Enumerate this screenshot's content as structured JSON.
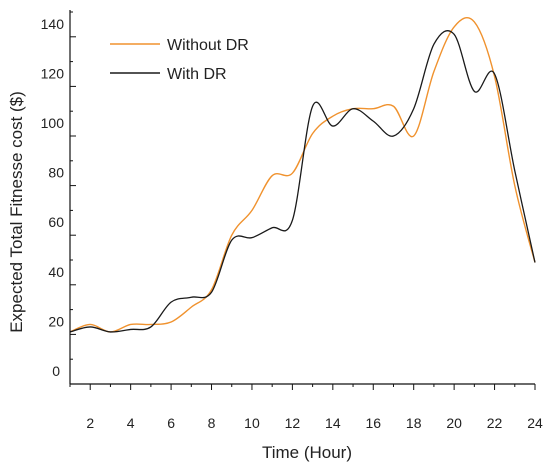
{
  "chart_data": {
    "type": "line",
    "title": "",
    "xlabel": "Time (Hour)",
    "ylabel": "Expected Total Fitnesse cost ($)",
    "xlim": [
      1,
      24
    ],
    "ylim": [
      0,
      150
    ],
    "x_ticks": [
      2,
      4,
      6,
      8,
      10,
      12,
      14,
      16,
      18,
      20,
      22,
      24
    ],
    "y_ticks": [
      0,
      20,
      40,
      60,
      80,
      100,
      120,
      140
    ],
    "y_tick_labels": [
      "0",
      "20",
      "40",
      "60",
      "80",
      "100",
      "120",
      "140"
    ],
    "grid": false,
    "legend_position": "top-left",
    "x": [
      1,
      2,
      3,
      4,
      5,
      6,
      7,
      8,
      9,
      10,
      11,
      12,
      13,
      14,
      15,
      16,
      17,
      18,
      19,
      20,
      21,
      22,
      23,
      24
    ],
    "series": [
      {
        "name": "Without DR",
        "color": "#F0922E",
        "values": [
          21,
          24,
          21,
          24,
          24,
          25,
          31,
          38,
          60,
          70,
          84,
          85,
          101,
          108,
          111,
          111,
          112,
          100,
          126,
          144,
          146,
          124,
          80,
          49
        ]
      },
      {
        "name": "With DR",
        "color": "#1a1a1a",
        "values": [
          21,
          23,
          21,
          22,
          23,
          33,
          35,
          37,
          58,
          59,
          63,
          66,
          112,
          104,
          111,
          106,
          100,
          111,
          137,
          141,
          118,
          125,
          86,
          49
        ]
      }
    ]
  }
}
